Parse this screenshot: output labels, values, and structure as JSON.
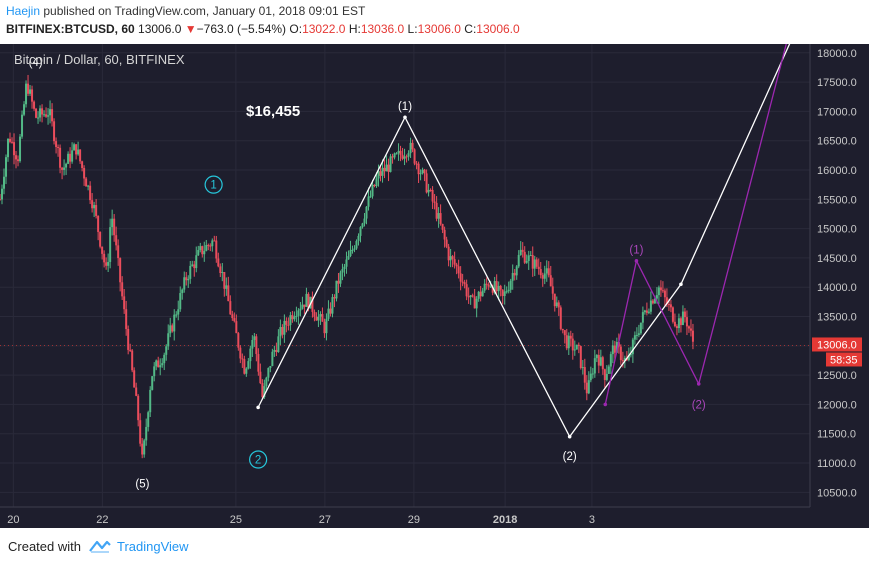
{
  "header": {
    "author": "Haejin",
    "published_text": "published on TradingView.com, January 01, 2018 09:01 EST",
    "symbol": "BITFINEX:BTCUSD, 60",
    "last": "13006.0",
    "down_arrow": "▼",
    "change": "−763.0 (−5.54%)",
    "o_label": "O:",
    "o_value": "13022.0",
    "h_label": "H:",
    "h_value": "13036.0",
    "l_label": "L:",
    "l_value": "13006.0",
    "c_label": "C:",
    "c_value": "13006.0"
  },
  "chart_title": "Bitcoin / Dollar, 60, BITFINEX",
  "price_annotation": "$16,455",
  "price_badge": "13006.0",
  "countdown_badge": "58:35",
  "footer": {
    "created_with": "Created with",
    "brand": "TradingView"
  },
  "colors": {
    "background": "#1e1e2d",
    "up": "#53b987",
    "down": "#eb4d5c",
    "wave_primary": "#ffffff",
    "wave_secondary": "#9c27b0",
    "circle_label": "#26c6da",
    "badge": "#e53935"
  },
  "chart_data": {
    "type": "candlestick",
    "title": "Bitcoin / Dollar, 60, BITFINEX",
    "xlabel": "",
    "ylabel": "",
    "ylim": [
      10250,
      18150
    ],
    "y_ticks": [
      10500,
      11000,
      11500,
      12000,
      12500,
      13000,
      13500,
      14000,
      14500,
      15000,
      15500,
      16000,
      16500,
      17000,
      17500,
      18000
    ],
    "y_tick_labels": [
      "10500.0",
      "11000.0",
      "11500.0",
      "12000.0",
      "12500.0",
      "13000.0",
      "13500.0",
      "14000.0",
      "14500.0",
      "15000.0",
      "15500.0",
      "16000.0",
      "16500.0",
      "17000.0",
      "17500.0",
      "18000.0"
    ],
    "x_tick_labels": [
      "20",
      "22",
      "25",
      "27",
      "29",
      "2018",
      "3"
    ],
    "last_price": 13006.0,
    "grid": true,
    "price_path": [
      [
        19.7,
        15500
      ],
      [
        19.9,
        16600
      ],
      [
        20.1,
        16200
      ],
      [
        20.3,
        17500
      ],
      [
        20.5,
        16900
      ],
      [
        20.8,
        17000
      ],
      [
        21.1,
        16000
      ],
      [
        21.4,
        16400
      ],
      [
        21.8,
        15400
      ],
      [
        22.1,
        14200
      ],
      [
        22.2,
        15300
      ],
      [
        22.5,
        13500
      ],
      [
        22.8,
        11800
      ],
      [
        22.9,
        11000
      ],
      [
        23.1,
        12500
      ],
      [
        23.4,
        12900
      ],
      [
        23.7,
        13700
      ],
      [
        23.9,
        14200
      ],
      [
        24.2,
        14600
      ],
      [
        24.5,
        14800
      ],
      [
        24.7,
        14200
      ],
      [
        24.9,
        13500
      ],
      [
        25.2,
        12600
      ],
      [
        25.4,
        13200
      ],
      [
        25.6,
        12100
      ],
      [
        25.8,
        12800
      ],
      [
        26.0,
        13200
      ],
      [
        26.3,
        13600
      ],
      [
        26.6,
        13800
      ],
      [
        27.0,
        13300
      ],
      [
        27.3,
        14100
      ],
      [
        27.6,
        14600
      ],
      [
        27.9,
        15300
      ],
      [
        28.2,
        15900
      ],
      [
        28.6,
        16200
      ],
      [
        28.9,
        16400
      ],
      [
        29.2,
        15900
      ],
      [
        29.5,
        15300
      ],
      [
        29.8,
        14500
      ],
      [
        30.0,
        14300
      ],
      [
        30.3,
        13700
      ],
      [
        30.7,
        14100
      ],
      [
        31.0,
        13800
      ],
      [
        31.4,
        14600
      ],
      [
        31.7,
        14400
      ],
      [
        32.0,
        14200
      ],
      [
        32.2,
        13700
      ],
      [
        32.4,
        13100
      ],
      [
        32.7,
        12900
      ],
      [
        32.9,
        12200
      ],
      [
        33.1,
        12900
      ],
      [
        33.3,
        12500
      ],
      [
        33.5,
        13000
      ],
      [
        33.8,
        12700
      ],
      [
        34.0,
        13200
      ],
      [
        34.2,
        13600
      ],
      [
        34.5,
        14000
      ],
      [
        34.7,
        13700
      ],
      [
        34.9,
        13400
      ],
      [
        35.1,
        13500
      ],
      [
        35.3,
        13000
      ]
    ],
    "wave_labels": [
      {
        "label": "(4)",
        "x": 20.5,
        "y": 17840,
        "color": "white"
      },
      {
        "label": "(5)",
        "x": 22.9,
        "y": 10650,
        "color": "white"
      },
      {
        "label": "1",
        "x": 24.5,
        "y": 15750,
        "color": "cyan",
        "circled": true
      },
      {
        "label": "2",
        "x": 25.5,
        "y": 11060,
        "color": "cyan",
        "circled": true
      },
      {
        "label": "(1)",
        "x": 28.8,
        "y": 17090,
        "color": "white"
      },
      {
        "label": "(2)",
        "x": 32.5,
        "y": 11120,
        "color": "white"
      },
      {
        "label": "(1)",
        "x": 34.0,
        "y": 14640,
        "color": "purple"
      },
      {
        "label": "(2)",
        "x": 35.4,
        "y": 12000,
        "color": "purple"
      }
    ],
    "wave_lines": [
      {
        "color": "white",
        "points": [
          [
            25.5,
            11950
          ],
          [
            28.8,
            16900
          ],
          [
            32.5,
            11450
          ],
          [
            35.0,
            14050
          ],
          [
            37.5,
            18250
          ]
        ]
      },
      {
        "color": "purple",
        "points": [
          [
            33.3,
            12000
          ],
          [
            34.0,
            14450
          ],
          [
            35.4,
            12350
          ],
          [
            37.4,
            18250
          ]
        ]
      }
    ]
  }
}
